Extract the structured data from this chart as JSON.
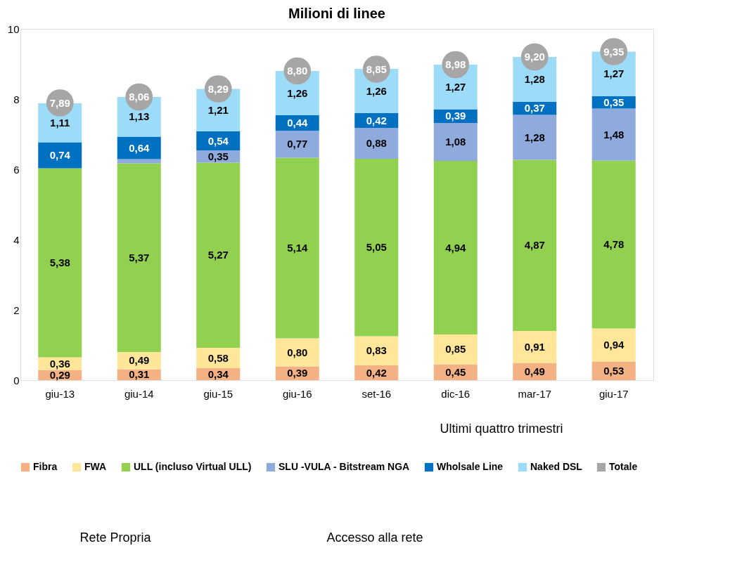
{
  "chart_data": {
    "type": "bar",
    "title": "Milioni di linee",
    "stacked": true,
    "categories": [
      "giu-13",
      "giu-14",
      "giu-15",
      "giu-16",
      "set-16",
      "dic-16",
      "mar-17",
      "giu-17"
    ],
    "series": [
      {
        "name": "Fibra",
        "color": "#f4b183",
        "values": [
          0.29,
          0.31,
          0.34,
          0.39,
          0.42,
          0.45,
          0.49,
          0.53
        ],
        "value_labels": [
          "0,29",
          "0,31",
          "0,34",
          "0,39",
          "0,42",
          "0,45",
          "0,49",
          "0,53"
        ]
      },
      {
        "name": "FWA",
        "color": "#ffe699",
        "values": [
          0.36,
          0.49,
          0.58,
          0.8,
          0.83,
          0.85,
          0.91,
          0.94
        ],
        "value_labels": [
          "0,36",
          "0,49",
          "0,58",
          "0,80",
          "0,83",
          "0,85",
          "0,91",
          "0,94"
        ]
      },
      {
        "name": "ULL (incluso Virtual ULL)",
        "color": "#92d050",
        "values": [
          5.38,
          5.37,
          5.27,
          5.14,
          5.05,
          4.94,
          4.87,
          4.78
        ],
        "value_labels": [
          "5,38",
          "5,37",
          "5,27",
          "5,14",
          "5,05",
          "4,94",
          "4,87",
          "4,78"
        ]
      },
      {
        "name": "SLU -VULA - Bitstream NGA",
        "color": "#8faadc",
        "values": [
          null,
          0.12,
          0.35,
          0.77,
          0.88,
          1.08,
          1.28,
          1.48
        ],
        "value_labels": [
          null,
          null,
          "0,35",
          "0,77",
          "0,88",
          "1,08",
          "1,28",
          "1,48"
        ]
      },
      {
        "name": "Wholsale Line",
        "color": "#0070c0",
        "values": [
          0.74,
          0.64,
          0.54,
          0.44,
          0.42,
          0.39,
          0.37,
          0.35
        ],
        "value_labels": [
          "0,74",
          "0,64",
          "0,54",
          "0,44",
          "0,42",
          "0,39",
          "0,37",
          "0,35"
        ]
      },
      {
        "name": "Naked DSL",
        "color": "#9ddcf9",
        "values": [
          1.11,
          1.13,
          1.21,
          1.26,
          1.26,
          1.27,
          1.28,
          1.27
        ],
        "value_labels": [
          "1,11",
          "1,13",
          "1,21",
          "1,26",
          "1,26",
          "1,27",
          "1,28",
          "1,27"
        ]
      },
      {
        "name": "Totale",
        "type": "scatter",
        "color": "#a6a6a6",
        "values": [
          7.89,
          8.06,
          8.29,
          8.8,
          8.85,
          8.98,
          9.2,
          9.35
        ],
        "value_labels": [
          "7,89",
          "8,06",
          "8,29",
          "8,80",
          "8,85",
          "8,98",
          "9,20",
          "9,35"
        ]
      }
    ],
    "ylim": [
      0,
      10
    ],
    "yticks": [
      0,
      2,
      4,
      6,
      8,
      10
    ],
    "grid": false,
    "legend": "bottom",
    "annotations": [
      "Ultimi quattro trimestri",
      "Rete Propria",
      "Accesso alla rete"
    ]
  }
}
